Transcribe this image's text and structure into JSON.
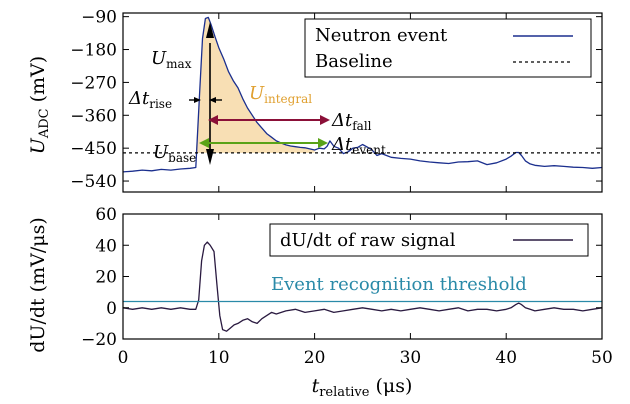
{
  "chart_data": [
    {
      "type": "line",
      "panel": "top",
      "ylabel_main": "U",
      "ylabel_sub": "ADC",
      "ylabel_unit": " (mV)",
      "ylim": [
        -570,
        -80
      ],
      "yticks": [
        -90,
        -180,
        -270,
        -360,
        -450,
        -540
      ],
      "xlim": [
        0,
        50
      ],
      "legend_position": "top-right",
      "series": [
        {
          "name": "Neutron event",
          "color": "#1b2f8e",
          "style": "solid",
          "x": [
            0,
            1,
            2,
            3,
            4,
            5,
            6,
            7,
            7.6,
            8.0,
            8.3,
            8.6,
            8.9,
            9.2,
            9.6,
            10.0,
            10.5,
            11,
            11.5,
            12,
            12.5,
            13,
            13.5,
            14,
            14.5,
            15,
            15.5,
            16,
            16.5,
            17,
            17.5,
            18,
            18.5,
            19,
            19.5,
            20,
            20.5,
            21,
            21.3,
            21.6,
            22,
            22.5,
            23,
            23.5,
            24,
            24.5,
            25,
            25.5,
            26,
            26.5,
            27,
            27.5,
            28,
            29,
            30,
            31,
            32,
            33,
            34,
            35,
            36,
            37,
            38,
            39,
            40,
            40.5,
            41,
            41.3,
            41.6,
            42,
            42.5,
            43,
            44,
            45,
            46,
            47,
            48,
            49,
            50
          ],
          "y": [
            -515,
            -513,
            -510,
            -512,
            -508,
            -510,
            -507,
            -505,
            -503,
            -300,
            -150,
            -95,
            -92,
            -112,
            -145,
            -175,
            -205,
            -240,
            -265,
            -285,
            -315,
            -340,
            -360,
            -380,
            -395,
            -410,
            -420,
            -430,
            -436,
            -441,
            -444,
            -446,
            -448,
            -449,
            -452,
            -455,
            -450,
            -452,
            -445,
            -430,
            -445,
            -450,
            -465,
            -460,
            -450,
            -448,
            -440,
            -447,
            -455,
            -470,
            -465,
            -470,
            -475,
            -478,
            -480,
            -485,
            -488,
            -490,
            -492,
            -488,
            -487,
            -485,
            -495,
            -490,
            -480,
            -472,
            -462,
            -462,
            -470,
            -485,
            -493,
            -497,
            -500,
            -498,
            -500,
            -502,
            -503,
            -505,
            -503
          ]
        },
        {
          "name": "Baseline",
          "color": "#000000",
          "style": "dotted",
          "x": [
            0,
            50
          ],
          "y": [
            -463,
            -463
          ]
        }
      ],
      "annotations": {
        "u_max_main": "U",
        "u_max_sub": "max",
        "dt_rise_main": "Δt",
        "dt_rise_sub": "rise",
        "u_integral_main": "U",
        "u_integral_sub": "integral",
        "dt_fall_main": "Δt",
        "dt_fall_sub": "fall",
        "dt_event_main": "Δt",
        "dt_event_sub": "event",
        "u_base_main": "U",
        "u_base_sub": "base"
      },
      "colors": {
        "integral_fill": "#f8dfb4",
        "integral_text": "#e0a030",
        "fall_arrow": "#8b1038",
        "event_arrow": "#5aa318"
      }
    },
    {
      "type": "line",
      "panel": "bottom",
      "ylabel": "dU/dt (mV/μs)",
      "ylim": [
        -20,
        60
      ],
      "yticks": [
        60,
        40,
        20,
        0,
        -20
      ],
      "xlim": [
        0,
        50
      ],
      "xticks": [
        0,
        10,
        20,
        30,
        40,
        50
      ],
      "xlabel_main": "t",
      "xlabel_sub": "relative",
      "xlabel_unit": " (μs)",
      "legend_position": "top-right",
      "series": [
        {
          "name": "dU/dt of raw signal",
          "color": "#2a1a40",
          "style": "solid",
          "x": [
            0,
            1,
            2,
            3,
            4,
            5,
            6,
            7,
            7.6,
            7.9,
            8.2,
            8.5,
            8.8,
            9.1,
            9.5,
            9.8,
            10.1,
            10.4,
            10.8,
            11.2,
            11.6,
            12.0,
            12.5,
            13,
            13.5,
            14,
            14.5,
            15,
            15.5,
            16,
            17,
            18,
            19,
            20,
            21,
            22,
            23,
            24,
            25,
            26,
            27,
            28,
            29,
            30,
            31,
            32,
            33,
            34,
            35,
            36,
            37,
            38,
            39,
            40,
            40.5,
            41,
            41.3,
            41.6,
            42,
            42.5,
            43,
            44,
            45,
            46,
            47,
            48,
            49,
            50
          ],
          "y": [
            0,
            -1,
            0,
            -1,
            0,
            -1,
            0,
            -1,
            -1,
            5,
            30,
            40,
            42,
            40,
            36,
            15,
            -5,
            -14,
            -15,
            -13,
            -11,
            -10,
            -8,
            -7,
            -9,
            -10,
            -7,
            -5,
            -3,
            -4,
            -2,
            -1,
            -3,
            -2,
            -1,
            -3,
            -2,
            -1,
            0,
            -1,
            -2,
            -1,
            -2,
            -1,
            0,
            -1,
            -2,
            -1,
            0,
            -2,
            -1,
            -1,
            -2,
            -1,
            0,
            2,
            3,
            2,
            0,
            -1,
            -2,
            -1,
            0,
            -1,
            -1,
            -2,
            -1,
            0
          ]
        },
        {
          "name": "Event recognition threshold",
          "color": "#2a8aa8",
          "style": "solid",
          "x": [
            0,
            50
          ],
          "y": [
            4,
            4
          ]
        }
      ]
    }
  ]
}
